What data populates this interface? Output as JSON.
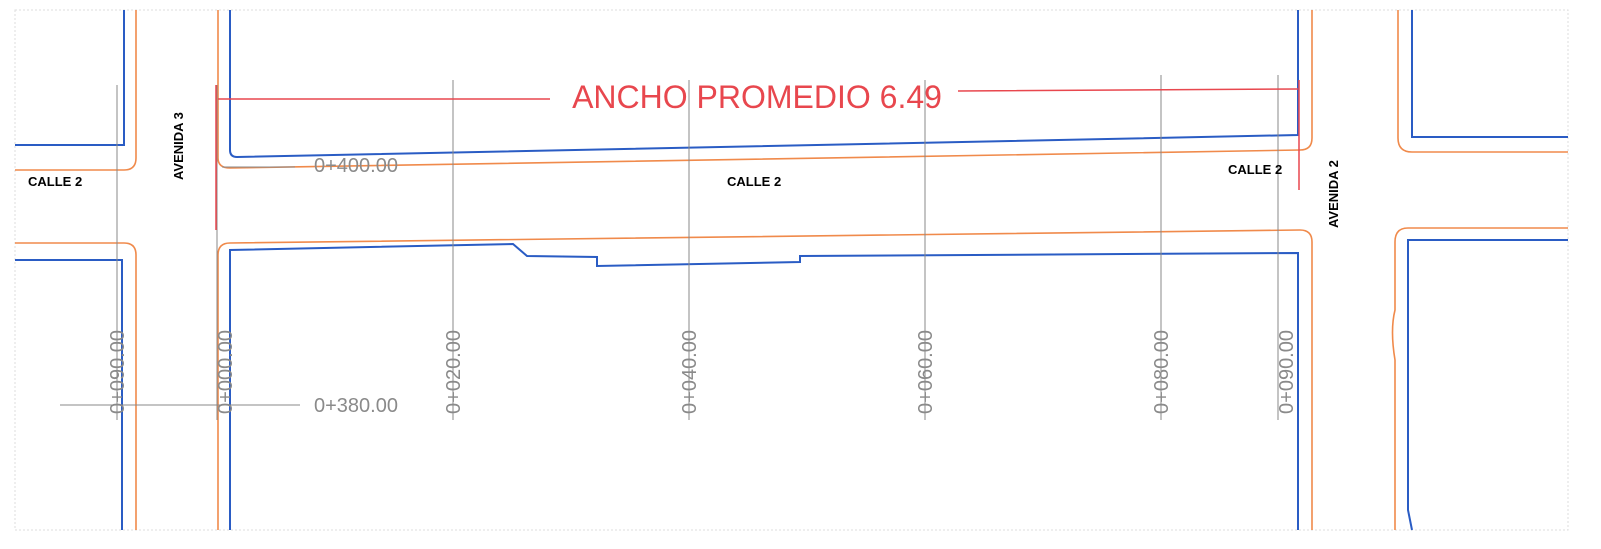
{
  "title": "ANCHO PROMEDIO 6.49",
  "streets": [
    "CALLE 2",
    "CALLE 2",
    "CALLE 2"
  ],
  "avenues": [
    "AVENIDA 3",
    "AVENIDA 2"
  ],
  "chainages": [
    "0+400.00",
    "0+380.00"
  ],
  "stations": [
    "0+090.00",
    "0+000.00",
    "0+020.00",
    "0+040.00",
    "0+060.00",
    "0+080.00",
    "0+090.00"
  ]
}
